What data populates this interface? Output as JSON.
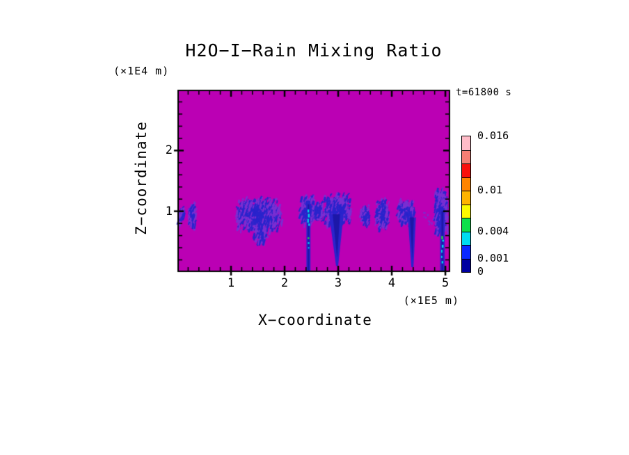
{
  "window": {
    "background": "#ffffff"
  },
  "chart_data": {
    "type": "heatmap",
    "title": "H2O−I−Rain Mixing Ratio",
    "time_annotation": "t=61800 s",
    "x_axis": {
      "label": "X−coordinate",
      "unit_label": "(×1E5 m)",
      "range": [
        0,
        5.09
      ],
      "major_ticks": [
        1,
        2,
        3,
        4,
        5
      ],
      "minor_step": 0.2
    },
    "z_axis": {
      "label": "Z−coordinate",
      "unit_label": "(×1E4 m)",
      "range": [
        0,
        3.0
      ],
      "major_ticks": [
        1,
        2
      ],
      "minor_step": 0.2
    },
    "colorbar": {
      "segment_colors_top_to_bottom": [
        "#ffbcc8",
        "#f47e74",
        "#f9100c",
        "#ff8400",
        "#ffb300",
        "#fbfb00",
        "#0ce04a",
        "#00dcf0",
        "#0a28ff",
        "#0000a0"
      ],
      "labels": [
        {
          "text": "0.016",
          "frac_from_bottom": 1.0
        },
        {
          "text": "0.01",
          "frac_from_bottom": 0.6
        },
        {
          "text": "0.004",
          "frac_from_bottom": 0.3
        },
        {
          "text": "0.001",
          "frac_from_bottom": 0.1
        },
        {
          "text": "0",
          "frac_from_bottom": 0.0
        }
      ]
    },
    "field": {
      "background_color": "#bb00b4",
      "palette": {
        "blue": "#2a24cc",
        "violet": "#7a2fd2",
        "navy": "#1c17a8",
        "cyan": "#00d9ec",
        "green": "#2fe03a"
      },
      "features": [
        {
          "type": "blob",
          "x0": 0.02,
          "x1": 0.14,
          "z0": 0.82,
          "z1": 1.12,
          "density": 0.75
        },
        {
          "type": "blob",
          "x0": 0.21,
          "x1": 0.37,
          "z0": 0.74,
          "z1": 1.17,
          "density": 0.8
        },
        {
          "type": "blob",
          "x0": 1.08,
          "x1": 1.98,
          "z0": 0.68,
          "z1": 1.27,
          "density": 0.85
        },
        {
          "type": "blob",
          "x0": 1.42,
          "x1": 1.72,
          "z0": 0.48,
          "z1": 0.76,
          "density": 0.5
        },
        {
          "type": "blob",
          "x0": 2.29,
          "x1": 2.6,
          "z0": 0.8,
          "z1": 1.3,
          "density": 0.85
        },
        {
          "type": "blob",
          "x0": 2.56,
          "x1": 2.74,
          "z0": 0.85,
          "z1": 1.2,
          "density": 0.55
        },
        {
          "type": "shaft",
          "x": 2.445,
          "w": 0.075,
          "z0": 0.0,
          "z1": 1.16,
          "core": true
        },
        {
          "type": "blob",
          "x0": 2.74,
          "x1": 3.27,
          "z0": 0.78,
          "z1": 1.33,
          "density": 0.95
        },
        {
          "type": "plume",
          "xa": 2.83,
          "xb": 3.1,
          "z1": 0.95,
          "xt": 2.98,
          "zt": 0.1
        },
        {
          "type": "blob",
          "x0": 3.42,
          "x1": 3.62,
          "z0": 0.78,
          "z1": 1.13,
          "density": 0.7
        },
        {
          "type": "blob",
          "x0": 3.7,
          "x1": 3.98,
          "z0": 0.72,
          "z1": 1.26,
          "density": 0.75
        },
        {
          "type": "blob",
          "x0": 4.1,
          "x1": 4.45,
          "z0": 0.78,
          "z1": 1.24,
          "density": 0.7
        },
        {
          "type": "plume",
          "xa": 4.3,
          "xb": 4.45,
          "z1": 0.9,
          "xt": 4.385,
          "zt": 0.08
        },
        {
          "type": "speck",
          "x": 4.62,
          "z": 0.95
        },
        {
          "type": "speck",
          "x": 4.7,
          "z": 0.85
        },
        {
          "type": "blob",
          "x0": 4.8,
          "x1": 5.07,
          "z0": 0.62,
          "z1": 1.42,
          "density": 1.0
        },
        {
          "type": "shaft",
          "x": 4.945,
          "w": 0.085,
          "z0": 0.0,
          "z1": 1.05,
          "core": true,
          "green": true
        }
      ]
    }
  }
}
